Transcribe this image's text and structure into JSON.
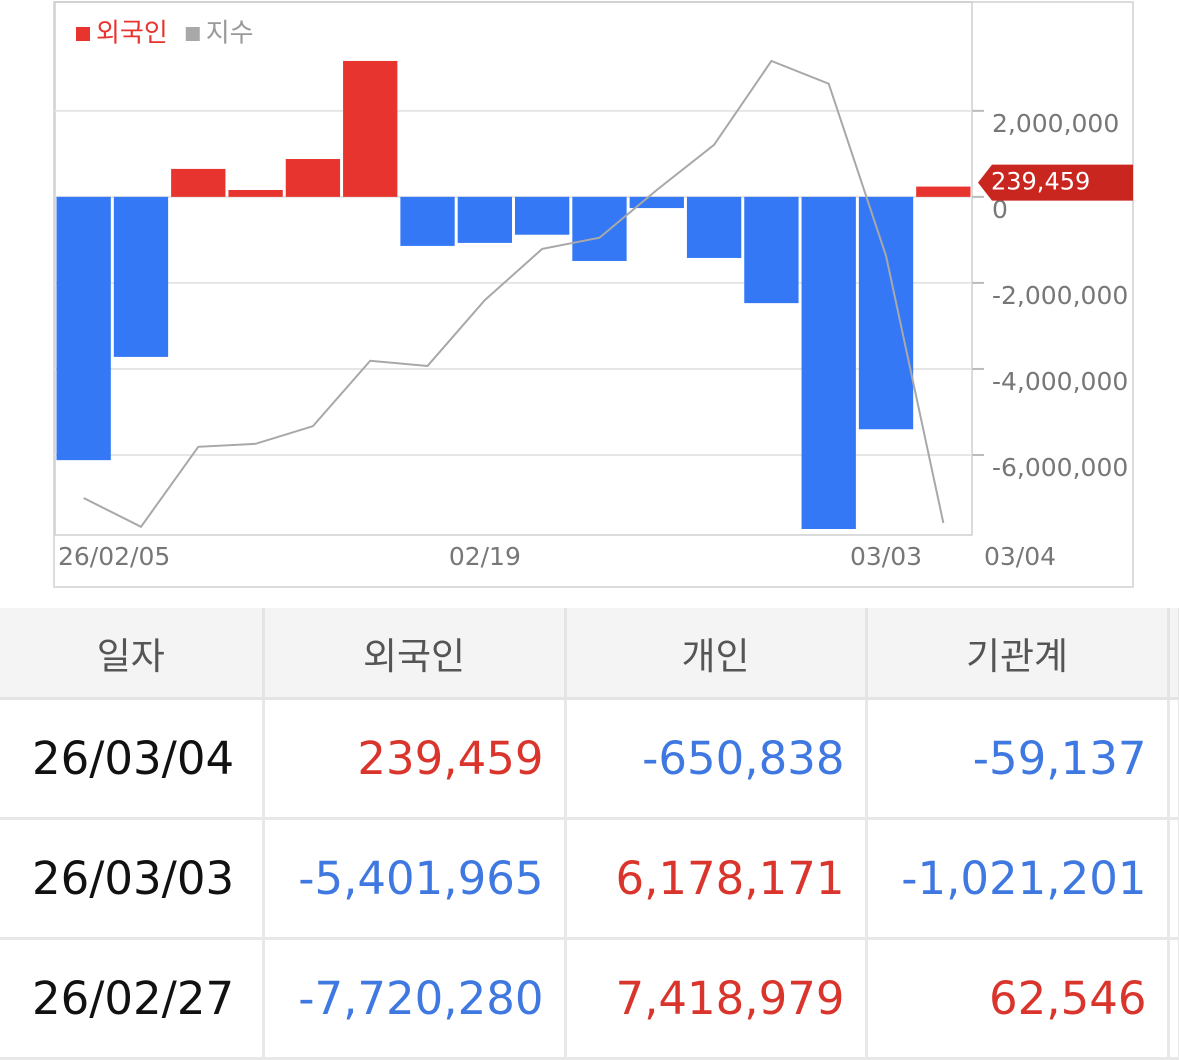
{
  "chart_data": {
    "type": "bar",
    "categories": [
      "26/02/05",
      null,
      null,
      null,
      null,
      null,
      null,
      "02/19",
      null,
      null,
      null,
      null,
      null,
      null,
      "03/03",
      "03/04"
    ],
    "series": [
      {
        "name": "외국인",
        "type": "bar",
        "color": "#e8342e",
        "negative_color": "#3478f6",
        "values": [
          -6120000,
          -3720000,
          650000,
          160000,
          880000,
          3160000,
          -1140000,
          -1070000,
          -880000,
          -1490000,
          -260000,
          -1420000,
          -2470000,
          -7720280,
          -5401965,
          239459
        ],
        "value_labels": [
          null,
          null,
          null,
          null,
          null,
          null,
          null,
          null,
          null,
          null,
          null,
          null,
          null,
          null,
          null,
          "239,459"
        ],
        "label_color": "#c8261f"
      },
      {
        "name": "지수",
        "type": "line",
        "color": "#a8a8a8",
        "values": [
          -7000000,
          -7670000,
          -5810000,
          -5740000,
          -5330000,
          -3810000,
          -3930000,
          -2400000,
          -1210000,
          -950000,
          160000,
          1210000,
          3160000,
          2630000,
          -1370000,
          -7580000
        ]
      }
    ],
    "ylim": [
      -7860000,
      4530000
    ],
    "yticks": [
      {
        "value": -6000000,
        "label": "-6,000,000"
      },
      {
        "value": -4000000,
        "label": "-4,000,000"
      },
      {
        "value": -2000000,
        "label": "-2,000,000"
      },
      0,
      {
        "value": 2000000,
        "label": "2,000,000"
      }
    ],
    "grid": true,
    "legend": "top-left"
  },
  "table": {
    "header": [
      "일자",
      "외국인",
      "개인",
      "기관계"
    ],
    "rows": [
      [
        "26/03/04",
        "239,459",
        "-650,838",
        "-59,137"
      ],
      [
        "26/03/03",
        "-5,401,965",
        "6,178,171",
        "-1,021,201"
      ],
      [
        "26/02/27",
        "-7,720,280",
        "7,418,979",
        "62,546"
      ]
    ]
  }
}
